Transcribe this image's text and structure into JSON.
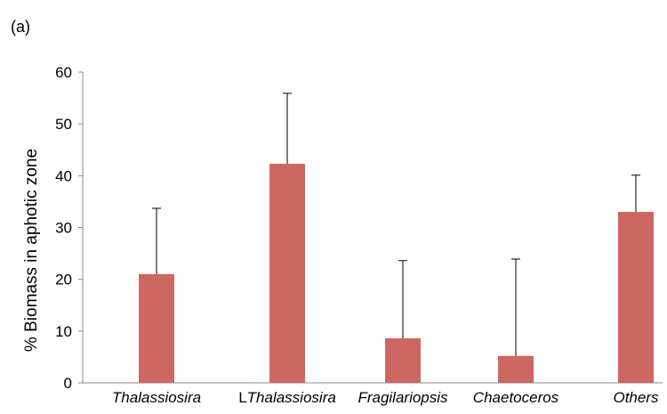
{
  "panel_label": "(a)",
  "colors": {
    "bar": "#cd6761",
    "axis": "#8a8a8a",
    "error": "#000000"
  },
  "chart_data": {
    "type": "bar",
    "title": "",
    "xlabel": "",
    "ylabel": "% Biomass in aphotic zone",
    "ylim": [
      0,
      60
    ],
    "yticks": [
      0,
      10,
      20,
      30,
      40,
      50,
      60
    ],
    "grid": false,
    "categories": [
      {
        "prefix": "",
        "name": "Thalassiosira"
      },
      {
        "prefix": "L",
        "name": "Thalassiosira"
      },
      {
        "prefix": "",
        "name": "Fragilariopsis"
      },
      {
        "prefix": "",
        "name": "Chaetoceros"
      },
      {
        "prefix": "",
        "name": "Others"
      }
    ],
    "values": [
      21,
      42.3,
      8.6,
      5.2,
      33
    ],
    "error_upper": [
      12.7,
      13.6,
      15,
      18.7,
      7.1
    ]
  }
}
